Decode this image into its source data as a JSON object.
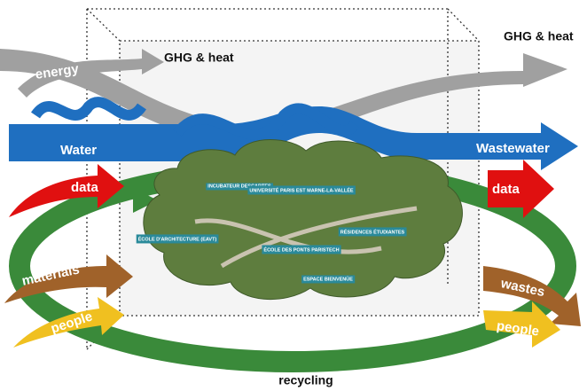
{
  "labels": {
    "ghg_heat_inner": "GHG & heat",
    "ghg_heat_outer": "GHG & heat",
    "energy": "energy",
    "water": "Water",
    "wastewater": "Wastewater",
    "data_in": "data",
    "data_out": "data",
    "materials": "materials",
    "wastes": "wastes",
    "people_in": "people",
    "people_out": "people",
    "recycling": "recycling"
  },
  "photo_labels": [
    "INCUBATEUR DESCARTES",
    "UNIVERSITÉ PARIS EST MARNE-LA-VALLÉE",
    "RÉSIDENCES ÉTUDIANTES",
    "ÉCOLE D'ARCHITECTURE (EAVT)",
    "ÉCOLE DES PONTS PARISTECH",
    "ESPACE BIENVENÜE"
  ]
}
